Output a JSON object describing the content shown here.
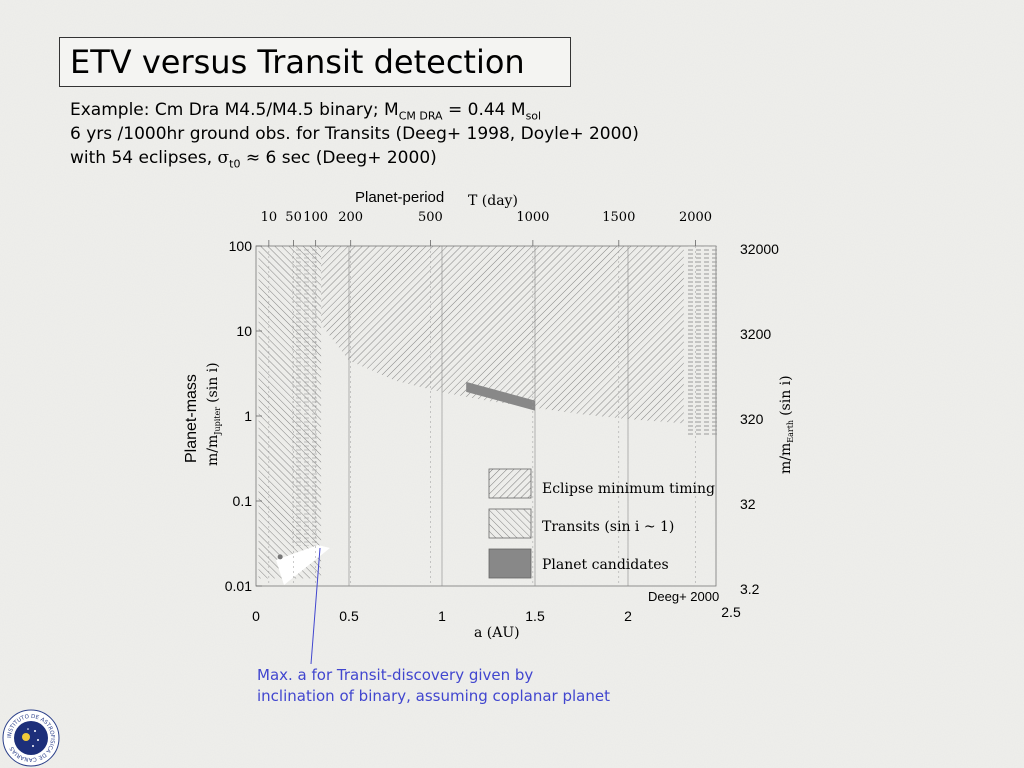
{
  "slide": {
    "title": "ETV versus Transit detection",
    "lines": [
      {
        "a": "Example: Cm Dra M4.5/M4.5 binary; M",
        "sub": "CM DRA",
        "b": " = 0.44 M",
        "sub2": "sol",
        "c": ""
      },
      {
        "a": "6 yrs /1000hr ground obs. for Transits  (Deeg+ 1998, Doyle+ 2000)",
        "sub": "",
        "b": "",
        "sub2": "",
        "c": ""
      },
      {
        "a": "with 54 eclipses, ",
        "greek": "σ",
        "sub": "t0",
        "b": " ≈ 6 sec (Deeg+ 2000)",
        "sub2": "",
        "c": ""
      }
    ],
    "annotation": [
      "Max. a for Transit-discovery given by",
      "inclination of binary, assuming coplanar planet"
    ],
    "logo_text": "INSTITUTO DE ASTROFISICA DE CANARIAS"
  },
  "chart_data": {
    "type": "area",
    "top_axis": {
      "label_sans": "Planet-period",
      "label_serif": "T (day)",
      "ticks": [
        "10",
        "50",
        "100",
        "200",
        "500",
        "1000",
        "1500",
        "2000"
      ]
    },
    "x_axis": {
      "label": "a (AU)",
      "ticks": [
        "0",
        "0.5",
        "1",
        "1.5",
        "2",
        "2.5"
      ],
      "range": [
        0,
        2.5
      ]
    },
    "y_axis": {
      "label": "Planet-mass",
      "label2": "m/m",
      "label2_sub": "Jupiter",
      "label2_tail": "(sin i)",
      "ticks": [
        "100",
        "10",
        "1",
        "0.1",
        "0.01"
      ],
      "range": [
        0.01,
        100
      ],
      "scale": "log"
    },
    "y2_axis": {
      "label": "m/m",
      "label_sub": "Earth",
      "label_tail": "(sin i)",
      "ticks": [
        "32000",
        "3200",
        "320",
        "32",
        "3.2"
      ]
    },
    "legend": {
      "placement": "lower-right",
      "items": [
        "Eclipse minimum timing",
        "Transits  (sin i  ~ 1)",
        "Planet candidates"
      ]
    },
    "credit": "Deeg+ 2000",
    "eclipse_timing_lower_bound": {
      "a": [
        0.35,
        0.5,
        0.75,
        1.0,
        1.25,
        1.5,
        1.75,
        2.0,
        2.3
      ],
      "m": [
        12,
        4.5,
        2.6,
        1.9,
        1.5,
        1.25,
        1.05,
        0.92,
        0.82
      ]
    },
    "transit_region": {
      "a": [
        0.1,
        0.35
      ],
      "m": [
        0.02,
        100
      ]
    },
    "planet_candidates": {
      "a": [
        1.13,
        1.5
      ],
      "m": [
        2.2,
        1.4
      ]
    },
    "transit_max_a": 0.35,
    "binary_point": {
      "a": 0.13,
      "m": 0.022
    }
  },
  "colors": {
    "background": "#efefec",
    "annotation": "#4146cf",
    "candidates": "#888888",
    "hatch": "#6a6a6a"
  }
}
